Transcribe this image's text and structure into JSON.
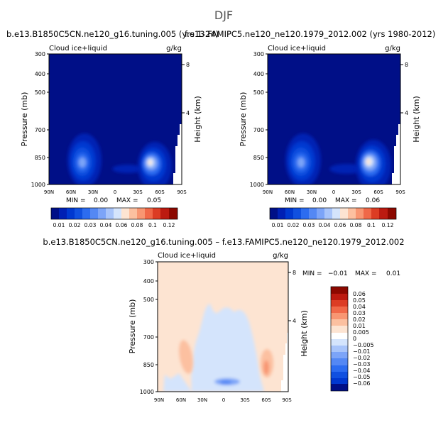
{
  "page": {
    "suptitle": "DJF"
  },
  "chart_data": [
    {
      "type": "contour",
      "title": "b.e13.B1850C5CN.ne120_g16.tuning.005 (yrs 1-24)",
      "left_label": "Cloud ice+liquid",
      "units": "g/kg",
      "ylabel": "Pressure (mb)",
      "ylabel_right": "Height (km)",
      "x_ticks": [
        "90N",
        "60N",
        "30N",
        "0",
        "30S",
        "60S",
        "90S"
      ],
      "y_ticks": [
        "300",
        "400",
        "500",
        "700",
        "850",
        "1000"
      ],
      "y_ticks_right": [
        "8",
        "4"
      ],
      "min_label": "MIN =",
      "min_value": "0.00",
      "max_label": "MAX =",
      "max_value": "0.05",
      "colorbar_labels": [
        "0.01",
        "0.02",
        "0.03",
        "0.04",
        "0.06",
        "0.08",
        "0.1",
        "0.12"
      ],
      "levels": [
        0.005,
        0.01,
        0.015,
        0.02,
        0.025,
        0.03,
        0.035,
        0.04,
        0.05,
        0.06,
        0.07,
        0.08,
        0.09,
        0.1,
        0.11,
        0.12
      ],
      "colors": [
        "#000f87",
        "#0020b4",
        "#0038d0",
        "#1050e0",
        "#2c6cf0",
        "#5488f4",
        "#7ca4f8",
        "#a8c4fa",
        "#d4e4fc",
        "#fde4d2",
        "#fcc0a0",
        "#f89672",
        "#f06848",
        "#dc3c24",
        "#bc1a10",
        "#8c0800"
      ],
      "features": [
        {
          "lat": 42,
          "p": 870,
          "peak": 0.04
        },
        {
          "lat": -55,
          "p": 880,
          "peak": 0.05
        },
        {
          "lat": -15,
          "p": 935,
          "peak": 0.018
        }
      ]
    },
    {
      "type": "contour",
      "title": "f.e13.FAMIPC5.ne120_ne120.1979_2012.002 (yrs 1980-2012)",
      "left_label": "Cloud ice+liquid",
      "units": "g/kg",
      "ylabel": "Pressure (mb)",
      "ylabel_right": "Height (km)",
      "x_ticks": [
        "90N",
        "60N",
        "30N",
        "0",
        "30S",
        "60S",
        "90S"
      ],
      "y_ticks": [
        "300",
        "400",
        "500",
        "700",
        "850",
        "1000"
      ],
      "y_ticks_right": [
        "8",
        "4"
      ],
      "min_label": "MIN =",
      "min_value": "0.00",
      "max_label": "MAX =",
      "max_value": "0.06",
      "colorbar_labels": [
        "0.01",
        "0.02",
        "0.03",
        "0.04",
        "0.06",
        "0.08",
        "0.1",
        "0.12"
      ],
      "levels": [
        0.005,
        0.01,
        0.015,
        0.02,
        0.025,
        0.03,
        0.035,
        0.04,
        0.05,
        0.06,
        0.07,
        0.08,
        0.09,
        0.1,
        0.11,
        0.12
      ],
      "colors": [
        "#000f87",
        "#0020b4",
        "#0038d0",
        "#1050e0",
        "#2c6cf0",
        "#5488f4",
        "#7ca4f8",
        "#a8c4fa",
        "#d4e4fc",
        "#fde4d2",
        "#fcc0a0",
        "#f89672",
        "#f06848",
        "#dc3c24",
        "#bc1a10",
        "#8c0800"
      ],
      "features": [
        {
          "lat": 42,
          "p": 870,
          "peak": 0.042
        },
        {
          "lat": -55,
          "p": 880,
          "peak": 0.06
        },
        {
          "lat": -15,
          "p": 935,
          "peak": 0.02
        }
      ]
    },
    {
      "type": "contour",
      "title": "b.e13.B1850C5CN.ne120_g16.tuning.005 – f.e13.FAMIPC5.ne120_ne120.1979_2012.002",
      "left_label": "Cloud ice+liquid",
      "units": "g/kg",
      "ylabel": "Pressure (mb)",
      "ylabel_right": "Height (km)",
      "x_ticks": [
        "90N",
        "60N",
        "30N",
        "0",
        "30S",
        "60S",
        "90S"
      ],
      "y_ticks": [
        "300",
        "400",
        "500",
        "700",
        "850",
        "1000"
      ],
      "y_ticks_right": [
        "8",
        "4"
      ],
      "min_label": "MIN =",
      "min_value": "−0.01",
      "max_label": "MAX =",
      "max_value": "0.01",
      "colorbar_labels": [
        "0.06",
        "0.05",
        "0.04",
        "0.03",
        "0.02",
        "0.01",
        "0.005",
        "0",
        "−0.005",
        "−0.01",
        "−0.02",
        "−0.03",
        "−0.04",
        "−0.05",
        "−0.06"
      ],
      "colors": [
        "#8c0800",
        "#bc1a10",
        "#dc3c24",
        "#f06848",
        "#f89672",
        "#fcc0a0",
        "#fde4d2",
        "#d4e4fc",
        "#a8c4fa",
        "#7ca4f8",
        "#5488f4",
        "#2c6cf0",
        "#1050e0",
        "#0038d0",
        "#000f87"
      ],
      "regions": [
        {
          "lat_range": [
            25,
            -30
          ],
          "p_range": [
            500,
            1000
          ],
          "sign": "negative",
          "value": -0.005
        },
        {
          "lat_range": [
            62,
            52
          ],
          "p_range": [
            760,
            870
          ],
          "sign": "positive",
          "value": 0.01
        },
        {
          "lat_range": [
            -47,
            -60
          ],
          "p_range": [
            800,
            920
          ],
          "sign": "positive",
          "value": 0.01
        }
      ]
    }
  ]
}
